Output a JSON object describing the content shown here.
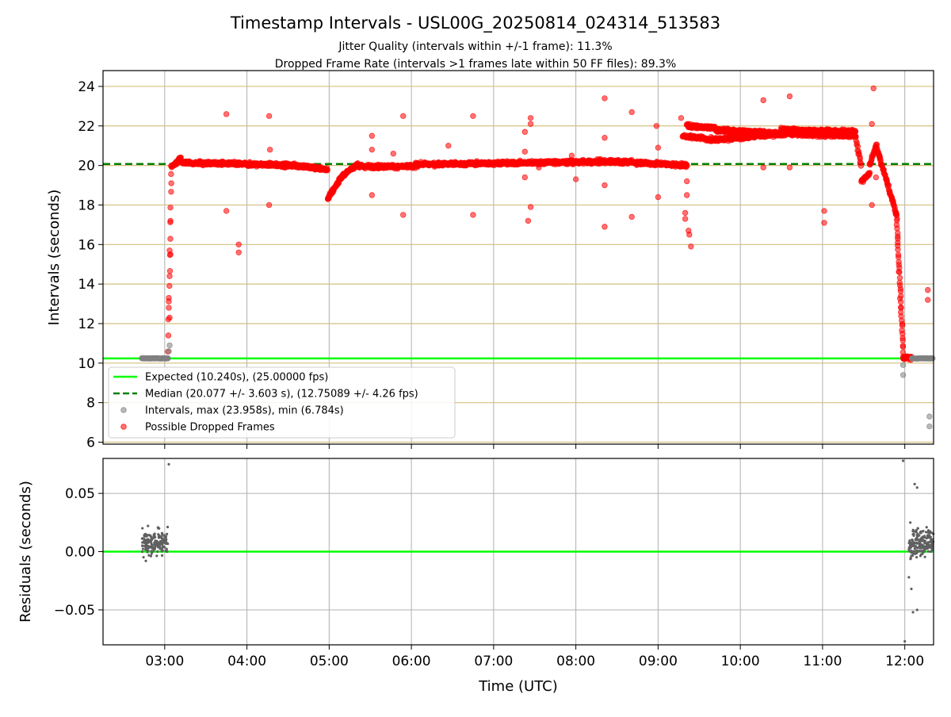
{
  "figure": {
    "title": "Timestamp Intervals - USL00G_20250814_024314_513583",
    "subtitle_line1": "Jitter Quality (intervals within +/-1 frame): 11.3%",
    "subtitle_line2": "Dropped Frame Rate (intervals >1 frames late within 50 FF files): 89.3%"
  },
  "colors": {
    "expected": "#00ff00",
    "median": "#008000",
    "intervals": "#808080",
    "dropped": "#ff0000",
    "residual_points": "#606060",
    "grid_major": "#b0b0b0",
    "grid_gold": "#d4bf80"
  },
  "chart_data": [
    {
      "type": "scatter",
      "panel": "intervals",
      "xlabel": "",
      "ylabel": "Intervals (seconds)",
      "x_unit": "hours UTC",
      "xlim": [
        2.25,
        12.35
      ],
      "ylim": [
        5.9,
        24.8
      ],
      "x_ticks": [
        {
          "value": 3,
          "label": "03:00"
        },
        {
          "value": 4,
          "label": "04:00"
        },
        {
          "value": 5,
          "label": "05:00"
        },
        {
          "value": 6,
          "label": "06:00"
        },
        {
          "value": 7,
          "label": "07:00"
        },
        {
          "value": 8,
          "label": "08:00"
        },
        {
          "value": 9,
          "label": "09:00"
        },
        {
          "value": 10,
          "label": "10:00"
        },
        {
          "value": 11,
          "label": "11:00"
        },
        {
          "value": 12,
          "label": "12:00"
        }
      ],
      "y_ticks": [
        6,
        8,
        10,
        12,
        14,
        16,
        18,
        20,
        22,
        24
      ],
      "grid": true,
      "legend_position": "lower-left",
      "legend": [
        {
          "label": "Expected (10.240s), (25.00000 fps)",
          "kind": "line"
        },
        {
          "label": "Median (20.077 +/- 3.603 s), (12.75089 +/- 4.26 fps)",
          "kind": "dashed"
        },
        {
          "label": "Intervals, max (23.958s), min (6.784s)",
          "kind": "marker-gray"
        },
        {
          "label": "Possible Dropped Frames",
          "kind": "marker-red"
        }
      ],
      "expected_value": 10.24,
      "median_value": 20.077,
      "trend_segments": [
        {
          "x": [
            2.72,
            3.04
          ],
          "y": [
            10.24,
            10.24
          ],
          "style": "gray",
          "count": 70
        },
        {
          "x": [
            3.04,
            3.08
          ],
          "y": [
            10.6,
            19.5
          ],
          "style": "red",
          "count": 12
        },
        {
          "x": [
            3.08,
            3.2
          ],
          "y": [
            19.9,
            20.4
          ],
          "style": "red",
          "count": 30
        },
        {
          "x": [
            3.2,
            4.6
          ],
          "y": [
            20.15,
            20.0
          ],
          "style": "red",
          "count": 420
        },
        {
          "x": [
            4.6,
            4.98
          ],
          "y": [
            20.0,
            19.8
          ],
          "style": "red",
          "count": 110
        },
        {
          "x": [
            4.98,
            5.12
          ],
          "y": [
            18.3,
            19.2
          ],
          "style": "red",
          "count": 45
        },
        {
          "x": [
            5.12,
            5.35
          ],
          "y": [
            19.3,
            20.1
          ],
          "style": "red",
          "count": 70
        },
        {
          "x": [
            5.35,
            6.05
          ],
          "y": [
            19.95,
            19.95
          ],
          "style": "red",
          "count": 210
        },
        {
          "x": [
            6.05,
            8.5
          ],
          "y": [
            20.05,
            20.2
          ],
          "style": "red",
          "count": 730
        },
        {
          "x": [
            8.5,
            9.35
          ],
          "y": [
            20.2,
            20.0
          ],
          "style": "red",
          "count": 250
        },
        {
          "x": [
            9.35,
            9.7
          ],
          "y": [
            22.0,
            21.9
          ],
          "style": "red",
          "count": 110
        },
        {
          "x": [
            9.3,
            9.7
          ],
          "y": [
            21.5,
            21.3
          ],
          "style": "red",
          "count": 90
        },
        {
          "x": [
            9.7,
            10.5
          ],
          "y": [
            21.8,
            21.6
          ],
          "style": "red",
          "count": 260
        },
        {
          "x": [
            9.7,
            10.5
          ],
          "y": [
            21.3,
            21.6
          ],
          "style": "red",
          "count": 200
        },
        {
          "x": [
            10.5,
            11.4
          ],
          "y": [
            21.8,
            21.7
          ],
          "style": "red",
          "count": 280
        },
        {
          "x": [
            10.5,
            11.4
          ],
          "y": [
            21.6,
            21.5
          ],
          "style": "red",
          "count": 180
        },
        {
          "x": [
            11.4,
            11.47
          ],
          "y": [
            21.5,
            20.0
          ],
          "style": "red",
          "count": 15
        },
        {
          "x": [
            11.47,
            11.57
          ],
          "y": [
            19.2,
            19.6
          ],
          "style": "red",
          "count": 25
        },
        {
          "x": [
            11.57,
            11.66
          ],
          "y": [
            20.0,
            21.1
          ],
          "style": "red",
          "count": 20
        },
        {
          "x": [
            11.66,
            11.9
          ],
          "y": [
            20.9,
            17.5
          ],
          "style": "red",
          "count": 60
        },
        {
          "x": [
            11.9,
            11.98
          ],
          "y": [
            17.5,
            10.6
          ],
          "style": "red",
          "count": 40
        },
        {
          "x": [
            11.98,
            12.08
          ],
          "y": [
            10.3,
            10.25
          ],
          "style": "red",
          "count": 30
        },
        {
          "x": [
            12.08,
            12.35
          ],
          "y": [
            10.24,
            10.24
          ],
          "style": "gray",
          "count": 45
        }
      ],
      "outliers_dropped": [
        [
          3.06,
          15.7
        ],
        [
          3.07,
          15.5
        ],
        [
          3.06,
          14.4
        ],
        [
          3.05,
          13.3
        ],
        [
          3.05,
          12.8
        ],
        [
          3.06,
          12.3
        ],
        [
          3.07,
          17.2
        ],
        [
          3.08,
          19.1
        ],
        [
          3.75,
          22.6
        ],
        [
          3.75,
          17.7
        ],
        [
          3.9,
          16.0
        ],
        [
          3.9,
          15.6
        ],
        [
          4.27,
          22.5
        ],
        [
          4.27,
          18.0
        ],
        [
          4.28,
          20.8
        ],
        [
          5.52,
          21.5
        ],
        [
          5.52,
          20.8
        ],
        [
          5.52,
          18.5
        ],
        [
          5.78,
          20.6
        ],
        [
          5.9,
          22.5
        ],
        [
          5.9,
          17.5
        ],
        [
          6.45,
          21.0
        ],
        [
          6.75,
          22.5
        ],
        [
          6.75,
          17.5
        ],
        [
          7.38,
          21.7
        ],
        [
          7.38,
          20.7
        ],
        [
          7.38,
          19.4
        ],
        [
          7.42,
          17.2
        ],
        [
          7.45,
          22.4
        ],
        [
          7.45,
          22.1
        ],
        [
          7.45,
          17.9
        ],
        [
          7.55,
          19.9
        ],
        [
          7.95,
          20.5
        ],
        [
          8.0,
          19.3
        ],
        [
          8.35,
          23.4
        ],
        [
          8.35,
          19.0
        ],
        [
          8.35,
          16.9
        ],
        [
          8.35,
          21.4
        ],
        [
          8.68,
          22.7
        ],
        [
          8.68,
          17.4
        ],
        [
          8.98,
          22.0
        ],
        [
          9.0,
          20.9
        ],
        [
          9.0,
          18.4
        ],
        [
          9.28,
          22.4
        ],
        [
          9.35,
          19.2
        ],
        [
          9.35,
          18.5
        ],
        [
          9.37,
          16.7
        ],
        [
          9.38,
          16.5
        ],
        [
          9.4,
          15.9
        ],
        [
          9.33,
          17.6
        ],
        [
          9.33,
          17.3
        ],
        [
          10.28,
          23.3
        ],
        [
          10.28,
          19.9
        ],
        [
          10.6,
          23.5
        ],
        [
          10.6,
          19.9
        ],
        [
          11.02,
          17.7
        ],
        [
          11.02,
          17.1
        ],
        [
          11.6,
          22.1
        ],
        [
          11.6,
          18.0
        ],
        [
          11.62,
          23.9
        ],
        [
          11.65,
          19.4
        ],
        [
          12.28,
          13.7
        ],
        [
          12.28,
          13.2
        ]
      ],
      "outliers_intervals": [
        [
          3.05,
          10.6
        ],
        [
          3.06,
          10.9
        ],
        [
          11.98,
          9.9
        ],
        [
          11.98,
          9.4
        ],
        [
          12.3,
          7.3
        ],
        [
          12.3,
          6.8
        ]
      ]
    },
    {
      "type": "scatter",
      "panel": "residuals",
      "xlabel": "Time (UTC)",
      "ylabel": "Residuals (seconds)",
      "x_unit": "hours UTC",
      "xlim": [
        2.25,
        12.35
      ],
      "ylim": [
        -0.08,
        0.08
      ],
      "y_ticks": [
        {
          "value": 0.05,
          "label": "0.05"
        },
        {
          "value": 0.0,
          "label": "0.00"
        },
        {
          "value": -0.05,
          "label": "−0.05"
        }
      ],
      "zero_line": 0.0,
      "clusters": [
        {
          "x_range": [
            2.72,
            3.04
          ],
          "y_range": [
            -0.03,
            0.045
          ],
          "count": 170
        },
        {
          "x_range": [
            12.05,
            12.35
          ],
          "y_range": [
            -0.03,
            0.045
          ],
          "count": 190
        }
      ],
      "outliers": [
        [
          3.05,
          0.075
        ],
        [
          11.98,
          0.078
        ],
        [
          12.12,
          0.058
        ],
        [
          12.15,
          0.055
        ],
        [
          12.08,
          -0.032
        ],
        [
          12.15,
          -0.05
        ],
        [
          12.1,
          -0.052
        ],
        [
          12.0,
          -0.077
        ],
        [
          12.05,
          -0.022
        ]
      ]
    }
  ]
}
